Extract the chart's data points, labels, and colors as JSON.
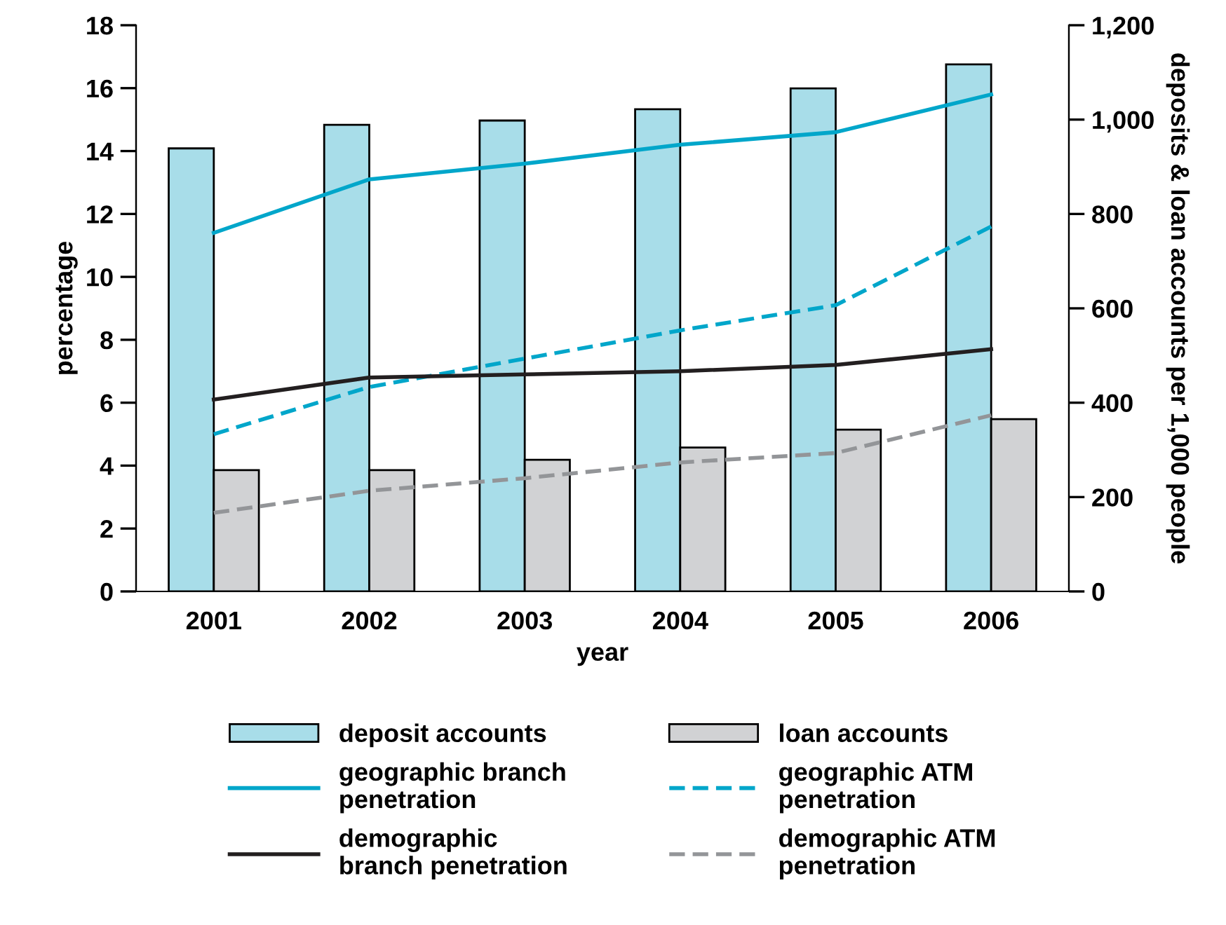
{
  "chart_data": {
    "type": "line",
    "xlabel": "year",
    "ylabel": "percentage",
    "y2label": "deposits & loan accounts per 1,000 people",
    "categories": [
      "2001",
      "2002",
      "2003",
      "2004",
      "2005",
      "2006"
    ],
    "ylim": [
      0,
      18
    ],
    "yticks": [
      0,
      2,
      4,
      6,
      8,
      10,
      12,
      14,
      16,
      18
    ],
    "y2lim": [
      0,
      1200
    ],
    "y2ticks": [
      {
        "value": 0,
        "label": "0"
      },
      {
        "value": 200,
        "label": "200"
      },
      {
        "value": 400,
        "label": "400"
      },
      {
        "value": 600,
        "label": "600"
      },
      {
        "value": 800,
        "label": "800"
      },
      {
        "value": 1000,
        "label": "1,000"
      },
      {
        "value": 1200,
        "label": "1,200"
      }
    ],
    "grid": false,
    "legend": "bottom",
    "marker": "none",
    "series": [
      {
        "name": "deposit accounts",
        "type": "bar",
        "axis": "y2",
        "color": "#a8dde9",
        "values": [
          939,
          989,
          998,
          1022,
          1066,
          1117
        ]
      },
      {
        "name": "loan accounts",
        "type": "bar",
        "axis": "y2",
        "color": "#d1d2d4",
        "values": [
          257,
          257,
          279,
          305,
          343,
          365
        ]
      },
      {
        "name": "geographic branch\npenetration",
        "line_style": "solid",
        "color": "#00a6ca",
        "values": [
          11.4,
          13.1,
          13.6,
          14.2,
          14.6,
          15.8
        ]
      },
      {
        "name": "geographic ATM\npenetration",
        "line_style": "dashed",
        "color": "#00a6ca",
        "values": [
          5.0,
          6.5,
          7.4,
          8.3,
          9.1,
          11.6
        ]
      },
      {
        "name": "demographic\nbranch penetration",
        "line_style": "solid",
        "color": "#231f20",
        "values": [
          6.1,
          6.8,
          6.9,
          7.0,
          7.2,
          7.7
        ]
      },
      {
        "name": "demographic ATM\npenetration",
        "line_style": "dashed",
        "color": "#939598",
        "values": [
          2.5,
          3.2,
          3.6,
          4.1,
          4.4,
          5.6
        ]
      }
    ]
  }
}
